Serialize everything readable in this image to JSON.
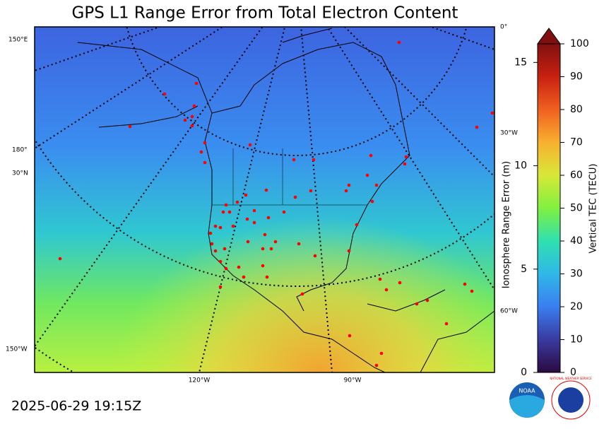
{
  "title": "GPS L1 Range Error from Total Electron Content",
  "timestamp": "2025-06-29 19:15Z",
  "map": {
    "graticule_labels": [
      "150°E",
      "180°",
      "30°N",
      "150°W",
      "0°",
      "30°W",
      "60°W",
      "120°W",
      "90°W"
    ]
  },
  "colorbar": {
    "range_label": "Ionosphere Range Error (m)",
    "range_lim": [
      0,
      15.9
    ],
    "range_ticks": [
      0,
      5,
      10,
      15
    ],
    "tec_label": "Vertical TEC (TECU)",
    "tec_lim": [
      0,
      100
    ],
    "tec_ticks": [
      0,
      10,
      20,
      30,
      40,
      50,
      60,
      70,
      80,
      90,
      100
    ]
  },
  "logos": {
    "noaa": "NOAA",
    "nws": "NATIONAL WEATHER SERVICE"
  }
}
